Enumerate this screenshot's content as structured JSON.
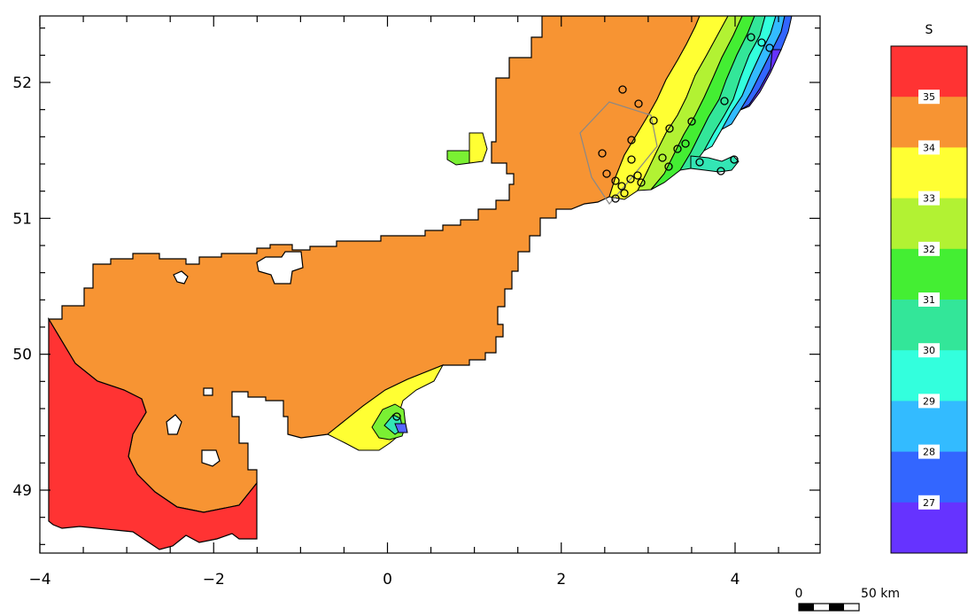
{
  "map": {
    "x_ticks": [
      -4,
      -2,
      0,
      2,
      4
    ],
    "y_ticks": [
      49,
      50,
      51,
      52
    ],
    "x_tick_labels": [
      "−4",
      "−2",
      "0",
      "2",
      "4"
    ],
    "y_tick_labels": [
      "49",
      "50",
      "51",
      "52"
    ]
  },
  "colorbar": {
    "title": "S",
    "levels": [
      {
        "label": "35",
        "color": "#ff3333"
      },
      {
        "label": "34",
        "color": "#f79433"
      },
      {
        "label": "33",
        "color": "#ffff33"
      },
      {
        "label": "32",
        "color": "#b2f233"
      },
      {
        "label": "31",
        "color": "#44ee33"
      },
      {
        "label": "30",
        "color": "#33e699"
      },
      {
        "label": "29",
        "color": "#33ffdd"
      },
      {
        "label": "28",
        "color": "#33bbff"
      },
      {
        "label": "27",
        "color": "#3366ff"
      },
      {
        "label": "",
        "color": "#6633ff"
      }
    ]
  },
  "scale_bar": {
    "start_label": "0",
    "end_label": "50 km"
  }
}
